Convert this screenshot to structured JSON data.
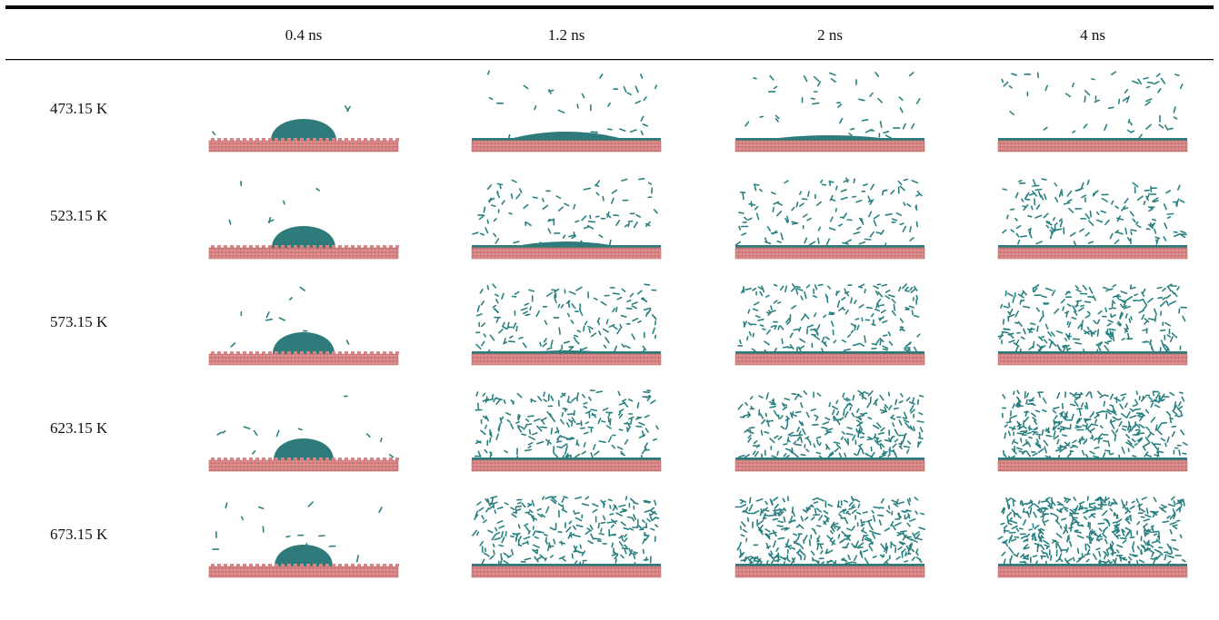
{
  "table": {
    "columns": [
      "0.4 ns",
      "1.2 ns",
      "2 ns",
      "4 ns"
    ],
    "rows": [
      "473.15 K",
      "523.15 K",
      "573.15 K",
      "623.15 K",
      "673.15 K"
    ]
  }
}
